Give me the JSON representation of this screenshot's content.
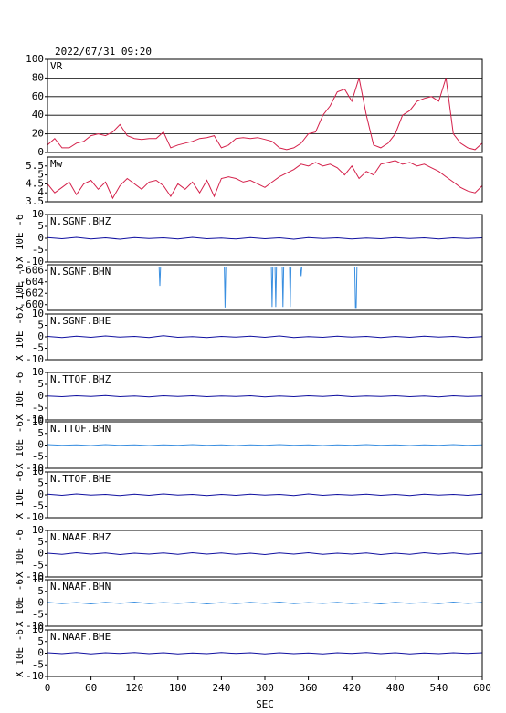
{
  "chart_data": [
    {
      "type": "line",
      "title": "2022/07/31 09:20",
      "label": "VR",
      "color": "#d4204a",
      "grid": true,
      "xlim": [
        0,
        600
      ],
      "ylim": [
        0,
        100
      ],
      "yticks": [
        0,
        20,
        40,
        60,
        80,
        100
      ],
      "x": [
        0,
        10,
        20,
        30,
        40,
        50,
        60,
        70,
        80,
        90,
        100,
        110,
        120,
        130,
        140,
        150,
        160,
        170,
        180,
        190,
        200,
        210,
        220,
        230,
        240,
        250,
        260,
        270,
        280,
        290,
        300,
        310,
        320,
        330,
        340,
        350,
        360,
        370,
        380,
        390,
        400,
        410,
        420,
        430,
        440,
        450,
        460,
        470,
        480,
        490,
        500,
        510,
        520,
        530,
        540,
        550,
        560,
        570,
        580,
        590,
        600
      ],
      "values": [
        8,
        15,
        5,
        5,
        10,
        12,
        18,
        20,
        18,
        22,
        30,
        18,
        15,
        14,
        15,
        15,
        22,
        5,
        8,
        10,
        12,
        15,
        16,
        18,
        5,
        8,
        15,
        16,
        15,
        16,
        14,
        12,
        5,
        3,
        5,
        10,
        20,
        22,
        40,
        50,
        65,
        68,
        55,
        80,
        40,
        8,
        5,
        10,
        20,
        40,
        45,
        55,
        58,
        60,
        55,
        80,
        20,
        10,
        5,
        3,
        10
      ]
    },
    {
      "type": "line",
      "label": "Mw",
      "color": "#d4204a",
      "xlim": [
        0,
        600
      ],
      "ylim": [
        3.5,
        6.0
      ],
      "yticks": [
        3.5,
        4.0,
        4.5,
        5.0,
        5.5
      ],
      "x": [
        0,
        10,
        20,
        30,
        40,
        50,
        60,
        70,
        80,
        90,
        100,
        110,
        120,
        130,
        140,
        150,
        160,
        170,
        180,
        190,
        200,
        210,
        220,
        230,
        240,
        250,
        260,
        270,
        280,
        290,
        300,
        310,
        320,
        330,
        340,
        350,
        360,
        370,
        380,
        390,
        400,
        410,
        420,
        430,
        440,
        450,
        460,
        470,
        480,
        490,
        500,
        510,
        520,
        530,
        540,
        550,
        560,
        570,
        580,
        590,
        600
      ],
      "values": [
        4.5,
        4.0,
        4.3,
        4.6,
        3.9,
        4.5,
        4.7,
        4.2,
        4.6,
        3.7,
        4.4,
        4.8,
        4.5,
        4.2,
        4.6,
        4.7,
        4.4,
        3.8,
        4.5,
        4.2,
        4.6,
        4.0,
        4.7,
        3.8,
        4.8,
        4.9,
        4.8,
        4.6,
        4.7,
        4.5,
        4.3,
        4.6,
        4.9,
        5.1,
        5.3,
        5.6,
        5.5,
        5.7,
        5.5,
        5.6,
        5.4,
        5.0,
        5.5,
        4.8,
        5.2,
        5.0,
        5.6,
        5.7,
        5.8,
        5.6,
        5.7,
        5.5,
        5.6,
        5.4,
        5.2,
        4.9,
        4.6,
        4.3,
        4.1,
        4.0,
        4.4
      ]
    },
    {
      "type": "line",
      "label": "N.SGNF.BHZ",
      "ylabel": "X 10E -6",
      "color": "#1010a0",
      "xlim": [
        0,
        600
      ],
      "ylim": [
        -10,
        10
      ],
      "yticks": [
        -10,
        -5,
        0,
        5,
        10
      ],
      "x": [
        0,
        20,
        40,
        60,
        80,
        100,
        120,
        140,
        160,
        180,
        200,
        220,
        240,
        260,
        280,
        300,
        320,
        340,
        360,
        380,
        400,
        420,
        440,
        460,
        480,
        500,
        520,
        540,
        560,
        580,
        600
      ],
      "values": [
        0.3,
        -0.2,
        0.4,
        -0.3,
        0.2,
        -0.4,
        0.3,
        -0.1,
        0.2,
        -0.3,
        0.4,
        -0.2,
        0.1,
        -0.3,
        0.3,
        -0.2,
        0.2,
        -0.4,
        0.3,
        -0.1,
        0.2,
        -0.3,
        0.1,
        -0.2,
        0.3,
        -0.1,
        0.2,
        -0.3,
        0.2,
        -0.1,
        0.2
      ]
    },
    {
      "type": "line",
      "label": "N.SGNF.BHN",
      "ylabel": "X 10E -6",
      "color": "#3a8fe0",
      "xlim": [
        0,
        600
      ],
      "ylim": [
        -599,
        -607
      ],
      "yticks": [
        -606,
        -604,
        -602,
        -600
      ],
      "x": [
        0,
        154,
        155,
        156,
        244,
        245,
        246,
        309,
        310,
        311,
        314,
        315,
        316,
        324,
        325,
        326,
        334,
        335,
        336,
        349,
        350,
        351,
        424,
        425,
        426,
        427,
        600
      ],
      "values": [
        -606.6,
        -606.6,
        -603.3,
        -606.6,
        -606.6,
        -599.5,
        -606.6,
        -606.6,
        -599.6,
        -606.6,
        -606.6,
        -599.6,
        -606.6,
        -606.6,
        -599.6,
        -606.6,
        -606.6,
        -599.6,
        -606.6,
        -606.6,
        -605.0,
        -606.6,
        -606.6,
        -599.5,
        -599.5,
        -606.6,
        -606.6
      ]
    },
    {
      "type": "line",
      "label": "N.SGNF.BHE",
      "ylabel": "X 10E -6",
      "color": "#1010a0",
      "xlim": [
        0,
        600
      ],
      "ylim": [
        -10,
        10
      ],
      "yticks": [
        -10,
        -5,
        0,
        5,
        10
      ],
      "x": [
        0,
        20,
        40,
        60,
        80,
        100,
        120,
        140,
        160,
        180,
        200,
        220,
        240,
        260,
        280,
        300,
        320,
        340,
        360,
        380,
        400,
        420,
        440,
        460,
        480,
        500,
        520,
        540,
        560,
        580,
        600
      ],
      "values": [
        0.2,
        -0.3,
        0.3,
        -0.2,
        0.4,
        -0.1,
        0.2,
        -0.3,
        0.5,
        -0.2,
        0.1,
        -0.3,
        0.2,
        -0.1,
        0.3,
        -0.2,
        0.4,
        -0.3,
        0.1,
        -0.2,
        0.3,
        -0.1,
        0.2,
        -0.3,
        0.2,
        -0.2,
        0.3,
        -0.1,
        0.2,
        -0.3,
        0.1
      ]
    },
    {
      "type": "line",
      "label": "N.TTOF.BHZ",
      "ylabel": "X 10E -6",
      "color": "#1010a0",
      "xlim": [
        0,
        600
      ],
      "ylim": [
        -10,
        10
      ],
      "yticks": [
        -10,
        -5,
        0,
        5,
        10
      ],
      "x": [
        0,
        20,
        40,
        60,
        80,
        100,
        120,
        140,
        160,
        180,
        200,
        220,
        240,
        260,
        280,
        300,
        320,
        340,
        360,
        380,
        400,
        420,
        440,
        460,
        480,
        500,
        520,
        540,
        560,
        580,
        600
      ],
      "values": [
        0.1,
        -0.2,
        0.2,
        -0.1,
        0.3,
        -0.2,
        0.1,
        -0.3,
        0.2,
        -0.1,
        0.2,
        -0.2,
        0.1,
        -0.1,
        0.2,
        -0.3,
        0.1,
        -0.2,
        0.2,
        -0.1,
        0.3,
        -0.2,
        0.1,
        -0.1,
        0.2,
        -0.2,
        0.1,
        -0.3,
        0.2,
        -0.1,
        0.1
      ]
    },
    {
      "type": "line",
      "label": "N.TTOF.BHN",
      "ylabel": "X 10E -6",
      "color": "#3a8fe0",
      "xlim": [
        0,
        600
      ],
      "ylim": [
        -10,
        10
      ],
      "yticks": [
        -10,
        -5,
        0,
        5,
        10
      ],
      "x": [
        0,
        20,
        40,
        60,
        80,
        100,
        120,
        140,
        160,
        180,
        200,
        220,
        240,
        260,
        280,
        300,
        320,
        340,
        360,
        380,
        400,
        420,
        440,
        460,
        480,
        500,
        520,
        540,
        560,
        580,
        600
      ],
      "values": [
        0.2,
        -0.1,
        0.1,
        -0.2,
        0.2,
        -0.1,
        0.1,
        -0.2,
        0.1,
        -0.1,
        0.2,
        -0.1,
        0.1,
        -0.2,
        0.1,
        -0.1,
        0.2,
        -0.1,
        0.1,
        -0.2,
        0.1,
        -0.1,
        0.2,
        -0.1,
        0.1,
        -0.2,
        0.1,
        -0.1,
        0.2,
        -0.1,
        0.1
      ]
    },
    {
      "type": "line",
      "label": "N.TTOF.BHE",
      "ylabel": "X 10E -6",
      "color": "#1010a0",
      "xlim": [
        0,
        600
      ],
      "ylim": [
        -10,
        10
      ],
      "yticks": [
        -10,
        -5,
        0,
        5,
        10
      ],
      "x": [
        0,
        20,
        40,
        60,
        80,
        100,
        120,
        140,
        160,
        180,
        200,
        220,
        240,
        260,
        280,
        300,
        320,
        340,
        360,
        380,
        400,
        420,
        440,
        460,
        480,
        500,
        520,
        540,
        560,
        580,
        600
      ],
      "values": [
        0.3,
        -0.2,
        0.4,
        -0.1,
        0.2,
        -0.3,
        0.3,
        -0.2,
        0.4,
        -0.1,
        0.2,
        -0.3,
        0.2,
        -0.2,
        0.3,
        -0.1,
        0.2,
        -0.3,
        0.4,
        -0.2,
        0.2,
        -0.1,
        0.3,
        -0.2,
        0.2,
        -0.3,
        0.3,
        -0.1,
        0.2,
        -0.2,
        0.3
      ]
    },
    {
      "type": "line",
      "label": "N.NAAF.BHZ",
      "ylabel": "X 10E -6",
      "color": "#1010a0",
      "xlim": [
        0,
        600
      ],
      "ylim": [
        -10,
        10
      ],
      "yticks": [
        -10,
        -5,
        0,
        5,
        10
      ],
      "x": [
        0,
        20,
        40,
        60,
        80,
        100,
        120,
        140,
        160,
        180,
        200,
        220,
        240,
        260,
        280,
        300,
        320,
        340,
        360,
        380,
        400,
        420,
        440,
        460,
        480,
        500,
        520,
        540,
        560,
        580,
        600
      ],
      "values": [
        0.2,
        -0.3,
        0.4,
        -0.2,
        0.3,
        -0.4,
        0.2,
        -0.2,
        0.3,
        -0.3,
        0.4,
        -0.2,
        0.3,
        -0.3,
        0.2,
        -0.4,
        0.3,
        -0.2,
        0.4,
        -0.3,
        0.2,
        -0.2,
        0.3,
        -0.4,
        0.2,
        -0.3,
        0.4,
        -0.2,
        0.3,
        -0.3,
        0.2
      ]
    },
    {
      "type": "line",
      "label": "N.NAAF.BHN",
      "ylabel": "X 10E -6",
      "color": "#3a8fe0",
      "xlim": [
        0,
        600
      ],
      "ylim": [
        -10,
        10
      ],
      "yticks": [
        -10,
        -5,
        0,
        5,
        10
      ],
      "x": [
        0,
        20,
        40,
        60,
        80,
        100,
        120,
        140,
        160,
        180,
        200,
        220,
        240,
        260,
        280,
        300,
        320,
        340,
        360,
        380,
        400,
        420,
        440,
        460,
        480,
        500,
        520,
        540,
        560,
        580,
        600
      ],
      "values": [
        0.3,
        -0.3,
        0.2,
        -0.4,
        0.3,
        -0.2,
        0.4,
        -0.3,
        0.2,
        -0.2,
        0.3,
        -0.4,
        0.2,
        -0.3,
        0.3,
        -0.2,
        0.4,
        -0.3,
        0.2,
        -0.2,
        0.3,
        -0.3,
        0.2,
        -0.4,
        0.3,
        -0.2,
        0.2,
        -0.3,
        0.4,
        -0.2,
        0.3
      ]
    },
    {
      "type": "line",
      "label": "N.NAAF.BHE",
      "ylabel": "X 10E -6",
      "color": "#1010a0",
      "xlabel": "SEC",
      "xlim": [
        0,
        600
      ],
      "ylim": [
        -10,
        10
      ],
      "yticks": [
        -10,
        -5,
        0,
        5,
        10
      ],
      "xticks": [
        0,
        60,
        120,
        180,
        240,
        300,
        360,
        420,
        480,
        540,
        600
      ],
      "x": [
        0,
        20,
        40,
        60,
        80,
        100,
        120,
        140,
        160,
        180,
        200,
        220,
        240,
        260,
        280,
        300,
        320,
        340,
        360,
        380,
        400,
        420,
        440,
        460,
        480,
        500,
        520,
        540,
        560,
        580,
        600
      ],
      "values": [
        0.2,
        -0.2,
        0.3,
        -0.3,
        0.2,
        -0.1,
        0.3,
        -0.2,
        0.2,
        -0.3,
        0.1,
        -0.2,
        0.3,
        -0.1,
        0.2,
        -0.3,
        0.2,
        -0.2,
        0.1,
        -0.3,
        0.2,
        -0.1,
        0.3,
        -0.2,
        0.2,
        -0.3,
        0.1,
        -0.2,
        0.2,
        -0.1,
        0.2
      ]
    }
  ]
}
